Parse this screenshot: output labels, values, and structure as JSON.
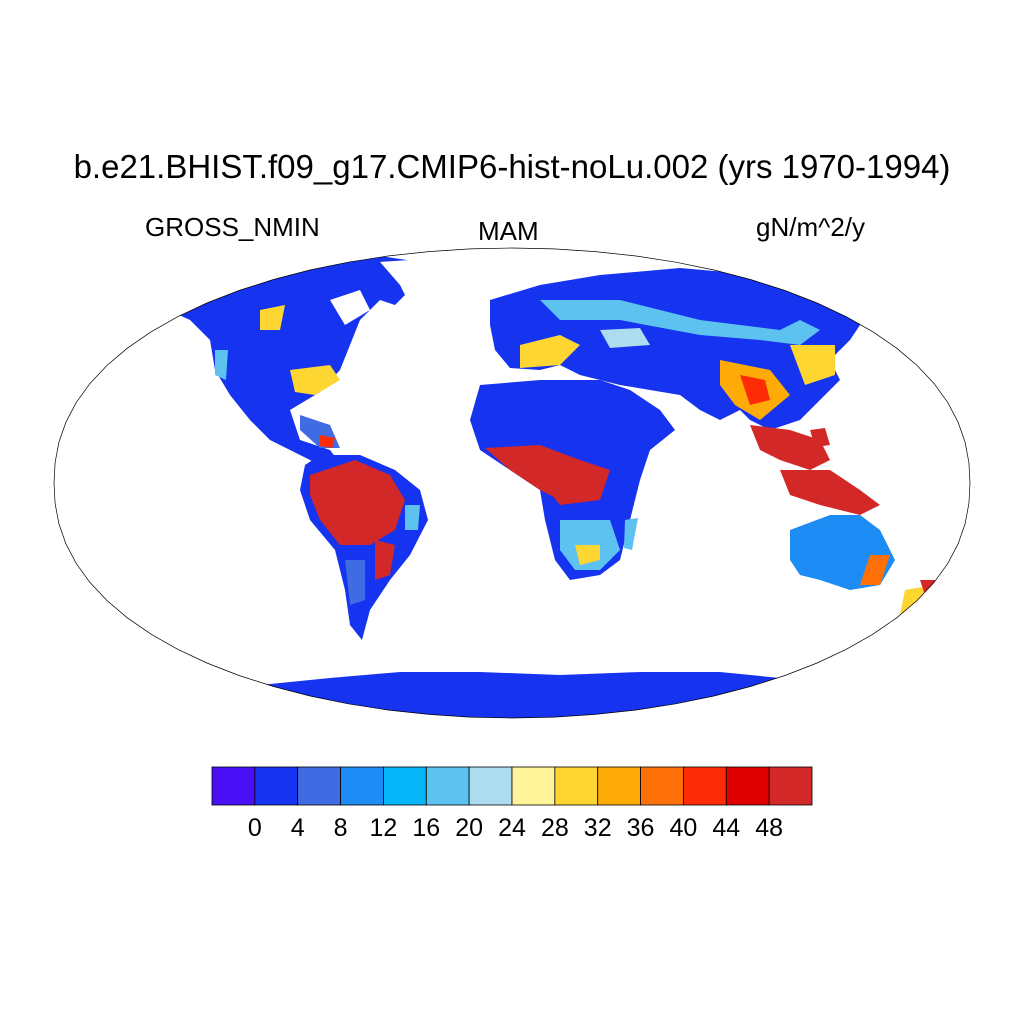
{
  "title": "b.e21.BHIST.f09_g17.CMIP6-hist-noLu.002 (yrs 1970-1994)",
  "variable": "GROSS_NMIN",
  "season": "MAM",
  "units": "gN/m^2/y",
  "colorbar": {
    "colors": [
      "#4a10f5",
      "#1633f0",
      "#3f6be3",
      "#1e8cf5",
      "#07b5f9",
      "#5ec2f1",
      "#addcf0",
      "#fff49a",
      "#fdd631",
      "#feab07",
      "#fd7108",
      "#fe2b07",
      "#e00000",
      "#d22828"
    ],
    "tick_labels": [
      "0",
      "4",
      "8",
      "12",
      "16",
      "20",
      "24",
      "28",
      "32",
      "36",
      "40",
      "44",
      "48"
    ]
  },
  "projection": "Robinson"
}
